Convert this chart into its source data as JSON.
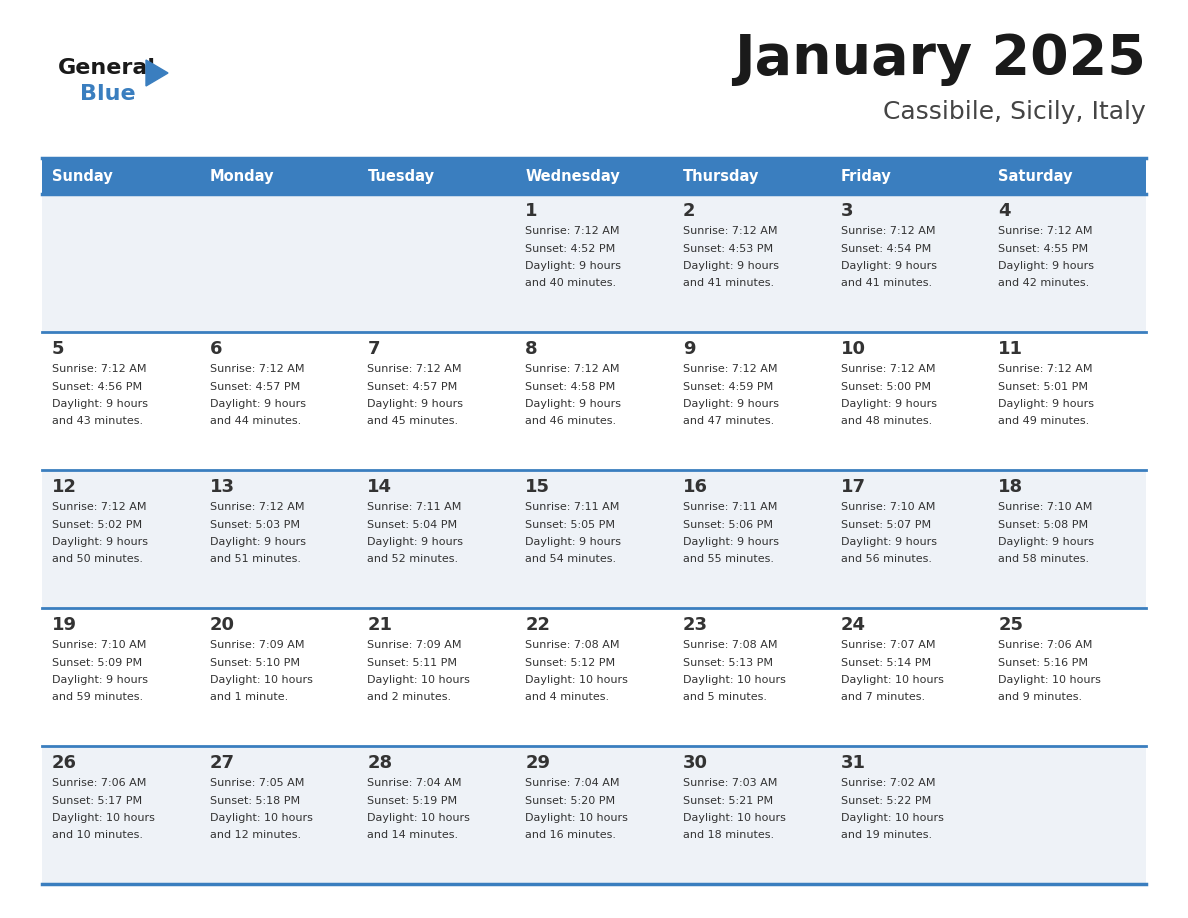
{
  "title": "January 2025",
  "subtitle": "Cassibile, Sicily, Italy",
  "header_color": "#3a7ebf",
  "header_text_color": "#ffffff",
  "cell_bg_even": "#eef2f7",
  "cell_bg_odd": "#ffffff",
  "day_number_color": "#333333",
  "text_color": "#333333",
  "border_color": "#3a7ebf",
  "days_of_week": [
    "Sunday",
    "Monday",
    "Tuesday",
    "Wednesday",
    "Thursday",
    "Friday",
    "Saturday"
  ],
  "calendar": [
    [
      {
        "day": "",
        "info": ""
      },
      {
        "day": "",
        "info": ""
      },
      {
        "day": "",
        "info": ""
      },
      {
        "day": "1",
        "info": "Sunrise: 7:12 AM\nSunset: 4:52 PM\nDaylight: 9 hours\nand 40 minutes."
      },
      {
        "day": "2",
        "info": "Sunrise: 7:12 AM\nSunset: 4:53 PM\nDaylight: 9 hours\nand 41 minutes."
      },
      {
        "day": "3",
        "info": "Sunrise: 7:12 AM\nSunset: 4:54 PM\nDaylight: 9 hours\nand 41 minutes."
      },
      {
        "day": "4",
        "info": "Sunrise: 7:12 AM\nSunset: 4:55 PM\nDaylight: 9 hours\nand 42 minutes."
      }
    ],
    [
      {
        "day": "5",
        "info": "Sunrise: 7:12 AM\nSunset: 4:56 PM\nDaylight: 9 hours\nand 43 minutes."
      },
      {
        "day": "6",
        "info": "Sunrise: 7:12 AM\nSunset: 4:57 PM\nDaylight: 9 hours\nand 44 minutes."
      },
      {
        "day": "7",
        "info": "Sunrise: 7:12 AM\nSunset: 4:57 PM\nDaylight: 9 hours\nand 45 minutes."
      },
      {
        "day": "8",
        "info": "Sunrise: 7:12 AM\nSunset: 4:58 PM\nDaylight: 9 hours\nand 46 minutes."
      },
      {
        "day": "9",
        "info": "Sunrise: 7:12 AM\nSunset: 4:59 PM\nDaylight: 9 hours\nand 47 minutes."
      },
      {
        "day": "10",
        "info": "Sunrise: 7:12 AM\nSunset: 5:00 PM\nDaylight: 9 hours\nand 48 minutes."
      },
      {
        "day": "11",
        "info": "Sunrise: 7:12 AM\nSunset: 5:01 PM\nDaylight: 9 hours\nand 49 minutes."
      }
    ],
    [
      {
        "day": "12",
        "info": "Sunrise: 7:12 AM\nSunset: 5:02 PM\nDaylight: 9 hours\nand 50 minutes."
      },
      {
        "day": "13",
        "info": "Sunrise: 7:12 AM\nSunset: 5:03 PM\nDaylight: 9 hours\nand 51 minutes."
      },
      {
        "day": "14",
        "info": "Sunrise: 7:11 AM\nSunset: 5:04 PM\nDaylight: 9 hours\nand 52 minutes."
      },
      {
        "day": "15",
        "info": "Sunrise: 7:11 AM\nSunset: 5:05 PM\nDaylight: 9 hours\nand 54 minutes."
      },
      {
        "day": "16",
        "info": "Sunrise: 7:11 AM\nSunset: 5:06 PM\nDaylight: 9 hours\nand 55 minutes."
      },
      {
        "day": "17",
        "info": "Sunrise: 7:10 AM\nSunset: 5:07 PM\nDaylight: 9 hours\nand 56 minutes."
      },
      {
        "day": "18",
        "info": "Sunrise: 7:10 AM\nSunset: 5:08 PM\nDaylight: 9 hours\nand 58 minutes."
      }
    ],
    [
      {
        "day": "19",
        "info": "Sunrise: 7:10 AM\nSunset: 5:09 PM\nDaylight: 9 hours\nand 59 minutes."
      },
      {
        "day": "20",
        "info": "Sunrise: 7:09 AM\nSunset: 5:10 PM\nDaylight: 10 hours\nand 1 minute."
      },
      {
        "day": "21",
        "info": "Sunrise: 7:09 AM\nSunset: 5:11 PM\nDaylight: 10 hours\nand 2 minutes."
      },
      {
        "day": "22",
        "info": "Sunrise: 7:08 AM\nSunset: 5:12 PM\nDaylight: 10 hours\nand 4 minutes."
      },
      {
        "day": "23",
        "info": "Sunrise: 7:08 AM\nSunset: 5:13 PM\nDaylight: 10 hours\nand 5 minutes."
      },
      {
        "day": "24",
        "info": "Sunrise: 7:07 AM\nSunset: 5:14 PM\nDaylight: 10 hours\nand 7 minutes."
      },
      {
        "day": "25",
        "info": "Sunrise: 7:06 AM\nSunset: 5:16 PM\nDaylight: 10 hours\nand 9 minutes."
      }
    ],
    [
      {
        "day": "26",
        "info": "Sunrise: 7:06 AM\nSunset: 5:17 PM\nDaylight: 10 hours\nand 10 minutes."
      },
      {
        "day": "27",
        "info": "Sunrise: 7:05 AM\nSunset: 5:18 PM\nDaylight: 10 hours\nand 12 minutes."
      },
      {
        "day": "28",
        "info": "Sunrise: 7:04 AM\nSunset: 5:19 PM\nDaylight: 10 hours\nand 14 minutes."
      },
      {
        "day": "29",
        "info": "Sunrise: 7:04 AM\nSunset: 5:20 PM\nDaylight: 10 hours\nand 16 minutes."
      },
      {
        "day": "30",
        "info": "Sunrise: 7:03 AM\nSunset: 5:21 PM\nDaylight: 10 hours\nand 18 minutes."
      },
      {
        "day": "31",
        "info": "Sunrise: 7:02 AM\nSunset: 5:22 PM\nDaylight: 10 hours\nand 19 minutes."
      },
      {
        "day": "",
        "info": ""
      }
    ]
  ]
}
